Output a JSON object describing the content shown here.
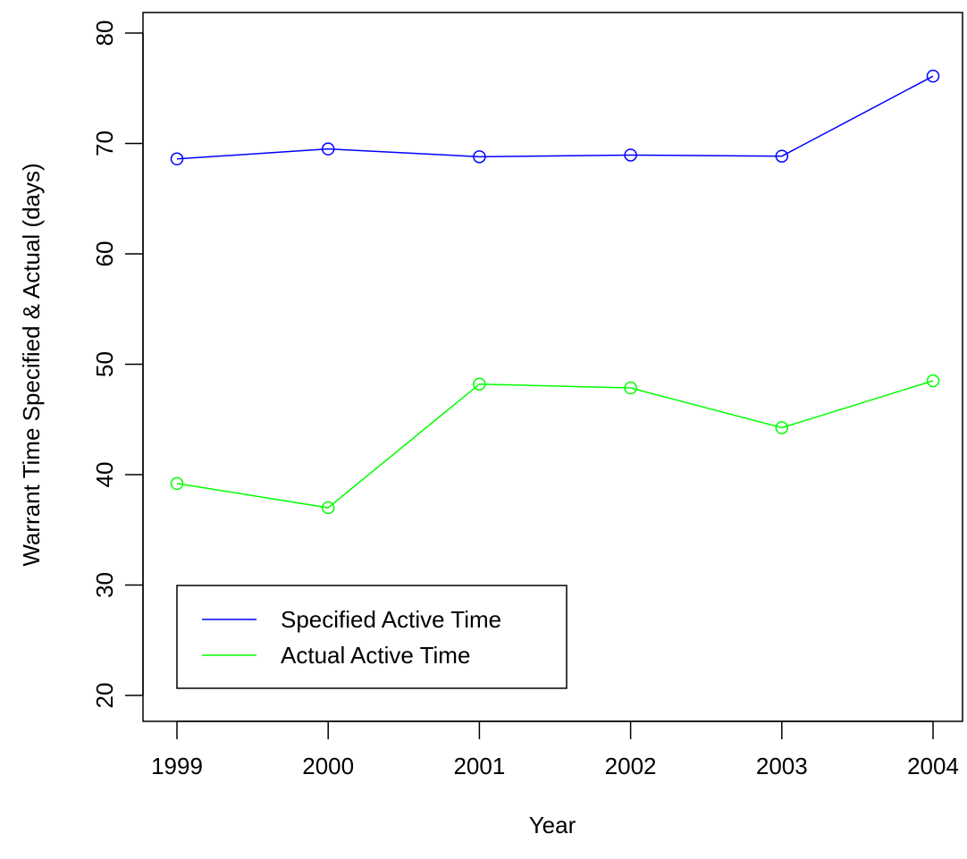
{
  "chart_data": {
    "type": "line",
    "title": "",
    "xlabel": "Year",
    "ylabel": "Warrant Time Specified & Actual (days)",
    "x": [
      "1999",
      "2000",
      "2001",
      "2002",
      "2003",
      "2004"
    ],
    "xlim": [
      1999,
      2004
    ],
    "ylim": [
      20,
      80
    ],
    "yticks": [
      20,
      30,
      40,
      50,
      60,
      70,
      80
    ],
    "ytick_labels": [
      "20",
      "30",
      "40",
      "50",
      "60",
      "70",
      "80"
    ],
    "grid": false,
    "legend_position": "bottom-left",
    "series": [
      {
        "name": "Specified Active Time",
        "color": "#0000ff",
        "marker": "open-circle",
        "values": [
          68.6,
          69.5,
          68.8,
          68.95,
          68.85,
          76.1
        ]
      },
      {
        "name": "Actual Active Time",
        "color": "#00ff00",
        "marker": "open-circle",
        "values": [
          39.2,
          37.0,
          48.2,
          47.85,
          44.25,
          48.5
        ]
      }
    ]
  }
}
